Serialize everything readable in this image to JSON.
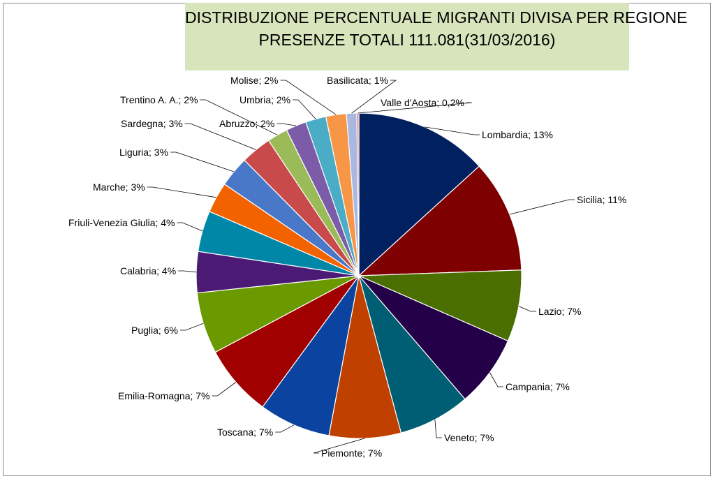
{
  "chart_data": {
    "type": "pie",
    "title": "DISTRIBUZIONE PERCENTUALE MIGRANTI DIVISA PER REGIONE",
    "subtitle": "PRESENZE TOTALI 111.081(31/03/2016)",
    "categories": [
      "Lombardia",
      "Sicilia",
      "Lazio",
      "Campania",
      "Veneto",
      "Piemonte",
      "Toscana",
      "Emilia-Romagna",
      "Puglia",
      "Calabria",
      "Friuli-Venezia Giulia",
      "Marche",
      "Liguria",
      "Sardegna",
      "Trentino A. A.",
      "Abruzzo",
      "Umbria",
      "Molise",
      "Basilicata",
      "Valle d'Aosta"
    ],
    "values": [
      13,
      11,
      7,
      7,
      7,
      7,
      7,
      7,
      6,
      4,
      4,
      3,
      3,
      3,
      2,
      2,
      2,
      2,
      1,
      0.2
    ],
    "labels": [
      "Lombardia; 13%",
      "Sicilia; 11%",
      "Lazio; 7%",
      "Campania; 7%",
      "Veneto; 7%",
      "Piemonte; 7%",
      "Toscana; 7%",
      "Emilia-Romagna; 7%",
      "Puglia; 6%",
      "Calabria; 4%",
      "Friuli-Venezia Giulia; 4%",
      "Marche; 3%",
      "Liguria; 3%",
      "Sardegna; 3%",
      "Trentino A. A.; 2%",
      "Abruzzo; 2%",
      "Umbria; 2%",
      "Molise; 2%",
      "Basilicata; 1%",
      "Valle d'Aosta; 0,2%"
    ],
    "colors": [
      "#002060",
      "#7f0000",
      "#4a6e00",
      "#230047",
      "#005e74",
      "#c04000",
      "#0a44a0",
      "#a00000",
      "#6b9a00",
      "#4a1a75",
      "#0087a8",
      "#f26300",
      "#4a78c8",
      "#c84a4a",
      "#9bbb59",
      "#7c5ca8",
      "#4bacc6",
      "#f79646",
      "#a9b8e0",
      "#e0787a"
    ],
    "legend": "none"
  }
}
